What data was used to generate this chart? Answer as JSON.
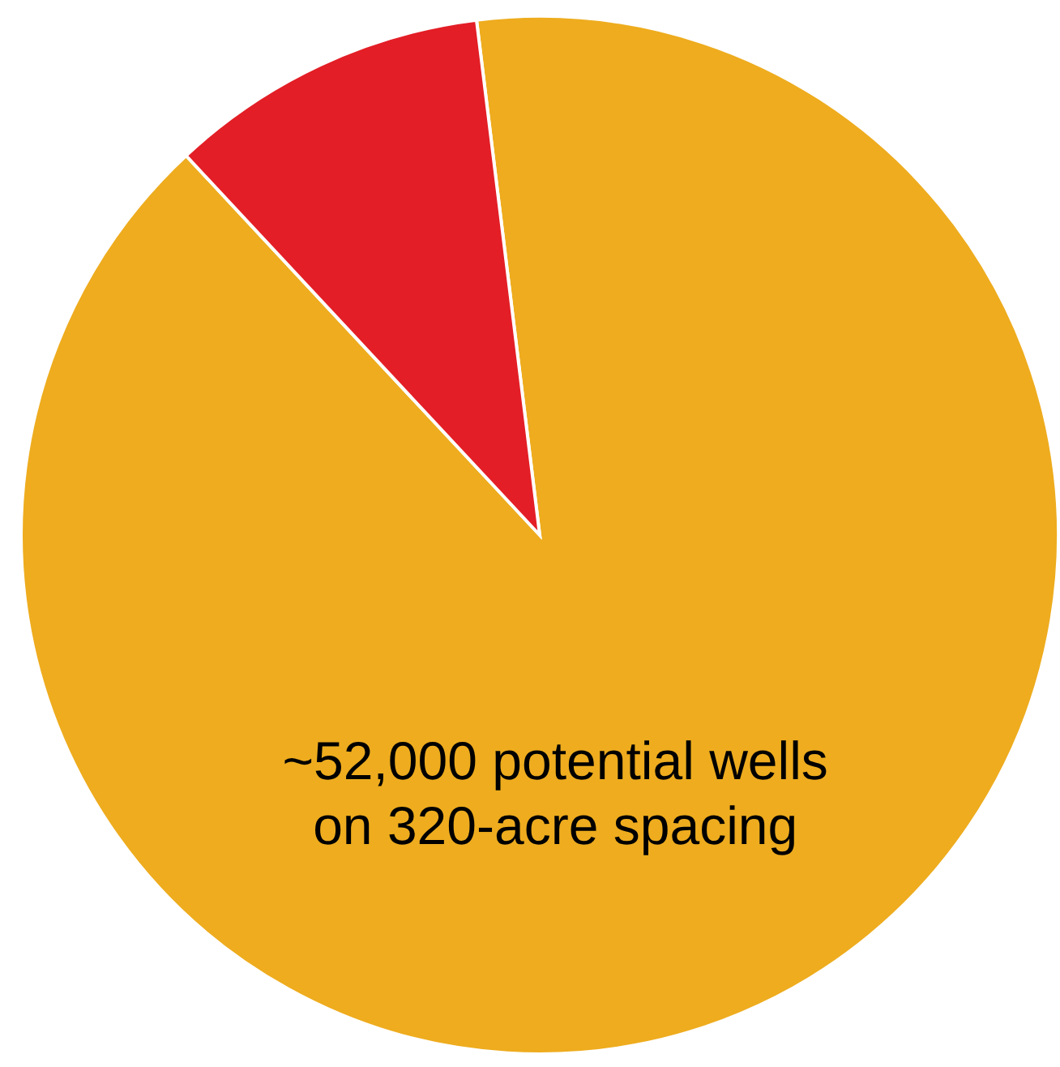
{
  "chart_data": {
    "type": "pie",
    "categories": [
      "~52,000 potential wells on 320-acre spacing",
      null
    ],
    "values": [
      90,
      10
    ],
    "colors": [
      "#eeac1e",
      "#e31e26"
    ],
    "legend": false
  }
}
